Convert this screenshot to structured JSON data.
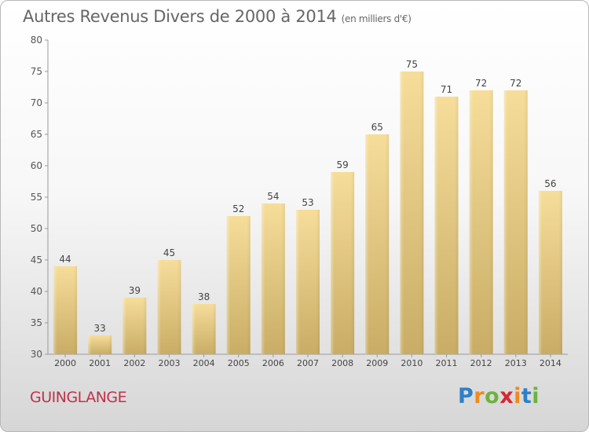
{
  "header": {
    "title": "Autres Revenus Divers de 2000 à 2014",
    "unit": "(en milliers d'€)"
  },
  "footer": {
    "commune": "GUINGLANGE",
    "logo": "Proxiti"
  },
  "colors": {
    "bar_light": "#f6dd9a",
    "bar_dark": "#c9ad66",
    "commune": "#c0314b"
  },
  "chart_data": {
    "type": "bar",
    "title": "Autres Revenus Divers de 2000 à 2014",
    "subtitle": "(en milliers d'€)",
    "categories": [
      "2000",
      "2001",
      "2002",
      "2003",
      "2004",
      "2005",
      "2006",
      "2007",
      "2008",
      "2009",
      "2010",
      "2011",
      "2012",
      "2013",
      "2014"
    ],
    "values": [
      44,
      33,
      39,
      45,
      38,
      52,
      54,
      53,
      59,
      65,
      75,
      71,
      72,
      72,
      56
    ],
    "data_labels": [
      "44",
      "33",
      "39",
      "45",
      "38",
      "52",
      "54",
      "53",
      "59",
      "65",
      "75",
      "71",
      "72",
      "72",
      "56"
    ],
    "ylim": [
      30,
      80
    ],
    "yticks": [
      "30",
      "35",
      "40",
      "45",
      "50",
      "55",
      "60",
      "65",
      "70",
      "75",
      "80"
    ],
    "ytick_values": [
      30,
      35,
      40,
      45,
      50,
      55,
      60,
      65,
      70,
      75,
      80
    ],
    "xlabel": "",
    "ylabel": "",
    "grid": false,
    "legend": "none"
  }
}
